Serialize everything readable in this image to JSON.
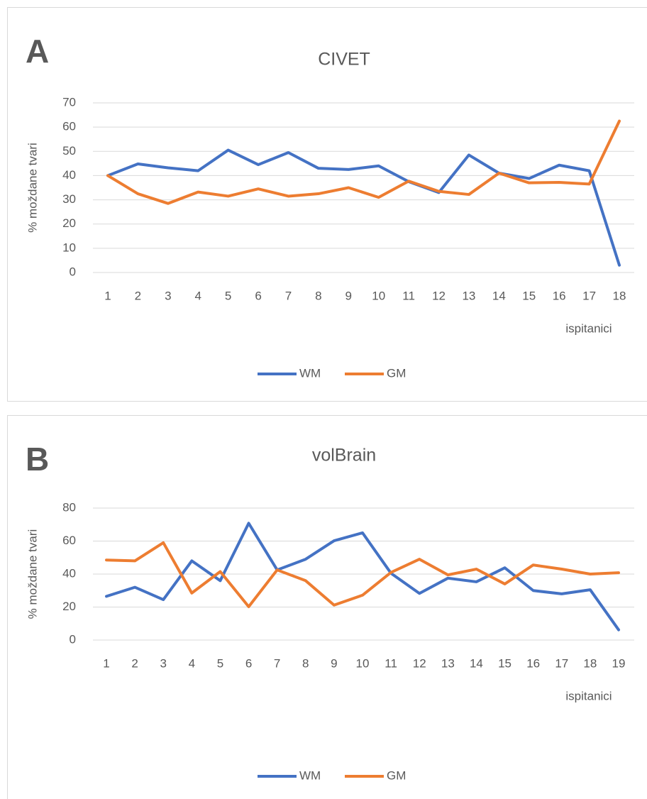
{
  "chart_data": [
    {
      "type": "line",
      "label": "A",
      "title": "CIVET",
      "y_label": "% moždane tvari",
      "x_label": "ispitanici",
      "categories": [
        "1",
        "2",
        "3",
        "4",
        "5",
        "6",
        "7",
        "8",
        "9",
        "10",
        "11",
        "12",
        "13",
        "14",
        "15",
        "16",
        "17",
        "18"
      ],
      "series": [
        {
          "name": "WM",
          "color": "#4472c4",
          "values": [
            40,
            44.8,
            43.2,
            42,
            50.5,
            44.5,
            49.5,
            43,
            42.5,
            44,
            37.5,
            33,
            48.5,
            41,
            38.8,
            44.3,
            42,
            3
          ]
        },
        {
          "name": "GM",
          "color": "#ed7d31",
          "values": [
            40,
            32.5,
            28.5,
            33.2,
            31.5,
            34.5,
            31.5,
            32.5,
            35,
            31,
            37.7,
            33.5,
            32.2,
            41,
            37,
            37.2,
            36.5,
            62.5
          ]
        }
      ],
      "ylim": [
        0,
        70
      ],
      "yticks": [
        0,
        10,
        20,
        30,
        40,
        50,
        60,
        70
      ],
      "grid": true,
      "legend": "bottom"
    },
    {
      "type": "line",
      "label": "B",
      "title": "volBrain",
      "y_label": "% moždane tvari",
      "x_label": "ispitanici",
      "categories": [
        "1",
        "2",
        "3",
        "4",
        "5",
        "6",
        "7",
        "8",
        "9",
        "10",
        "11",
        "12",
        "13",
        "14",
        "15",
        "16",
        "17",
        "18",
        "19"
      ],
      "series": [
        {
          "name": "WM",
          "color": "#4472c4",
          "values": [
            26.5,
            32,
            24.5,
            48,
            36,
            70.8,
            42.5,
            49,
            60.2,
            65,
            40.5,
            28.3,
            37.5,
            35.3,
            43.8,
            30,
            28,
            30.5,
            6.2
          ]
        },
        {
          "name": "GM",
          "color": "#ed7d31",
          "values": [
            48.5,
            48,
            59,
            28.5,
            41.5,
            20.2,
            42.5,
            36,
            21.2,
            27.2,
            41,
            49,
            39.5,
            43,
            34,
            45.5,
            43,
            40,
            40.8
          ]
        }
      ],
      "ylim": [
        0,
        80
      ],
      "yticks": [
        0,
        20,
        40,
        60,
        80
      ],
      "grid": true,
      "legend": "bottom"
    }
  ]
}
